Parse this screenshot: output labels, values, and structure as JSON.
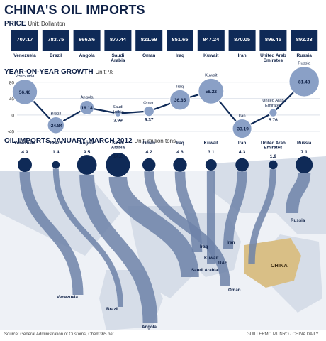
{
  "title": "CHINA'S OIL IMPORTS",
  "price": {
    "heading": "PRICE",
    "unit": "Unit: Dollar/ton"
  },
  "growth": {
    "heading": "YEAR-ON-YEAR GROWTH",
    "unit": "Unit: %"
  },
  "imports": {
    "heading": "OIL IMPORTS JANUARY-MARCH 2012",
    "unit": "Unit: million tons"
  },
  "source": "Source: General Administration of Customs, Chem365.net",
  "credit": "GUILLERMO MUNRO / CHINA DAILY",
  "map_labels": [
    "Venezuela",
    "Brazil",
    "Angola",
    "Saudi Arabia",
    "Iraq",
    "Kuwait",
    "UAE",
    "Iran",
    "Oman",
    "Russia",
    "CHINA"
  ],
  "colors": {
    "navy": "#0f2a57",
    "flow": "#6d83a8",
    "bubble": "#8aa0c6",
    "line": "#0f2a57",
    "map": "#d6dde8",
    "china": "#d9bf86"
  },
  "chart_data": [
    {
      "type": "table",
      "title": "PRICE",
      "subtitle": "Unit: Dollar/ton",
      "categories": [
        "Venezuela",
        "Brazil",
        "Angola",
        "Saudi Arabia",
        "Oman",
        "Iraq",
        "Kuwait",
        "Iran",
        "United Arab Emirates",
        "Russia"
      ],
      "values": [
        707.17,
        783.75,
        866.86,
        877.44,
        821.69,
        851.65,
        847.24,
        870.05,
        896.45,
        892.33
      ],
      "value_labels": [
        "707.17",
        "783.75",
        "866.86",
        "877.44",
        "821.69",
        "851.65",
        "847.24",
        "870.05",
        "896.45",
        "892.33"
      ]
    },
    {
      "type": "line",
      "title": "YEAR-ON-YEAR GROWTH",
      "subtitle": "Unit: %",
      "categories": [
        "Venezuela",
        "Brazil",
        "Angola",
        "Saudi Arabia",
        "Oman",
        "Iraq",
        "Kuwait",
        "Iran",
        "United Arab Emirates",
        "Russia"
      ],
      "values": [
        56.46,
        -24.84,
        18.14,
        3.99,
        9.37,
        36.85,
        58.22,
        -33.19,
        5.76,
        81.48
      ],
      "value_labels": [
        "56.46",
        "-24.84",
        "18.14",
        "3.99",
        "9.37",
        "36.85",
        "58.22",
        "-33.19",
        "5.76",
        "81.48"
      ],
      "ylim": [
        -40,
        90
      ],
      "yticks": [
        "80",
        "40",
        "0",
        "-40"
      ],
      "grid": true
    },
    {
      "type": "bar",
      "title": "OIL IMPORTS JANUARY-MARCH 2012",
      "subtitle": "Unit: million tons",
      "categories": [
        "Venezuela",
        "Brazil",
        "Angola",
        "Saudi Arabia",
        "Oman",
        "Iraq",
        "Kuwait",
        "Iran",
        "United Arab Emirates",
        "Russia"
      ],
      "values": [
        4.9,
        1.4,
        9.5,
        14.2,
        4.2,
        4.6,
        3.1,
        4.3,
        1.9,
        7.1
      ],
      "value_labels": [
        "4.9",
        "1.4",
        "9.5",
        "14.2",
        "4.2",
        "4.6",
        "3.1",
        "4.3",
        "1.9",
        "7.1"
      ]
    }
  ]
}
